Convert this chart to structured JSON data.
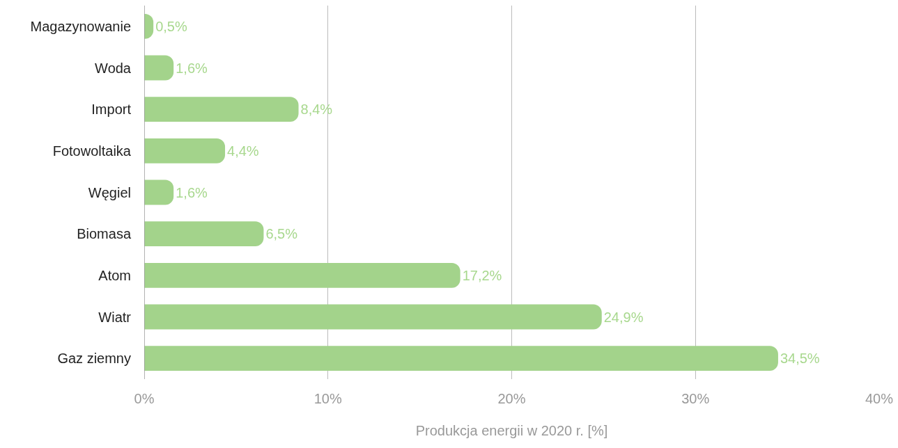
{
  "chart_data": {
    "type": "bar",
    "orientation": "horizontal",
    "xlabel": "Produkcja energii w 2020 r. [%]",
    "categories": [
      "Magazynowanie",
      "Woda",
      "Import",
      "Fotowoltaika",
      "Węgiel",
      "Biomasa",
      "Atom",
      "Wiatr",
      "Gaz ziemny"
    ],
    "values": [
      0.5,
      1.6,
      8.4,
      4.4,
      1.6,
      6.5,
      17.2,
      24.9,
      34.5
    ],
    "value_labels": [
      "0,5%",
      "1,6%",
      "8,4%",
      "4,4%",
      "1,6%",
      "6,5%",
      "17,2%",
      "24,9%",
      "34,5%"
    ],
    "color": "#a3d38b",
    "xlim": [
      0,
      40
    ],
    "xticks": [
      {
        "value": 0,
        "label": "0%"
      },
      {
        "value": 10,
        "label": "10%"
      },
      {
        "value": 20,
        "label": "20%"
      },
      {
        "value": 30,
        "label": "30%"
      },
      {
        "value": 40,
        "label": "40%"
      }
    ],
    "grid": "x",
    "legend": false
  }
}
